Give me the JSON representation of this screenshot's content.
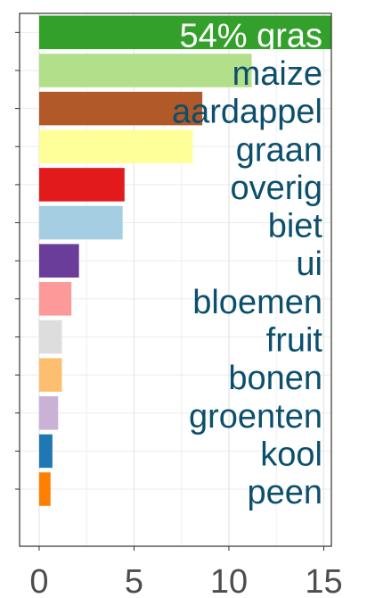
{
  "chart_data": {
    "type": "bar",
    "orientation": "horizontal",
    "categories": [
      "54% gras",
      "maize",
      "aardappel",
      "graan",
      "overig",
      "biet",
      "ui",
      "bloemen",
      "fruit",
      "bonen",
      "groenten",
      "kool",
      "peen"
    ],
    "values": [
      15.4,
      11.2,
      8.6,
      8.1,
      4.5,
      4.4,
      2.1,
      1.7,
      1.2,
      1.2,
      1.0,
      0.7,
      0.6
    ],
    "colors": [
      "#33a02c",
      "#b2df8a",
      "#b15928",
      "#ffff99",
      "#e31a1c",
      "#a6cee3",
      "#6a3d9a",
      "#fb9a99",
      "#dddddd",
      "#fdbf6f",
      "#cab2d6",
      "#1f78b4",
      "#ff7f00"
    ],
    "label_colors": [
      "#ffffff",
      "#0b4f6c",
      "#0b4f6c",
      "#0b4f6c",
      "#0b4f6c",
      "#0b4f6c",
      "#0b4f6c",
      "#0b4f6c",
      "#0b4f6c",
      "#0b4f6c",
      "#0b4f6c",
      "#0b4f6c",
      "#0b4f6c"
    ],
    "xlim": [
      -1.03,
      15.4
    ],
    "xticks": [
      0,
      5,
      10,
      15
    ],
    "grid": true
  }
}
